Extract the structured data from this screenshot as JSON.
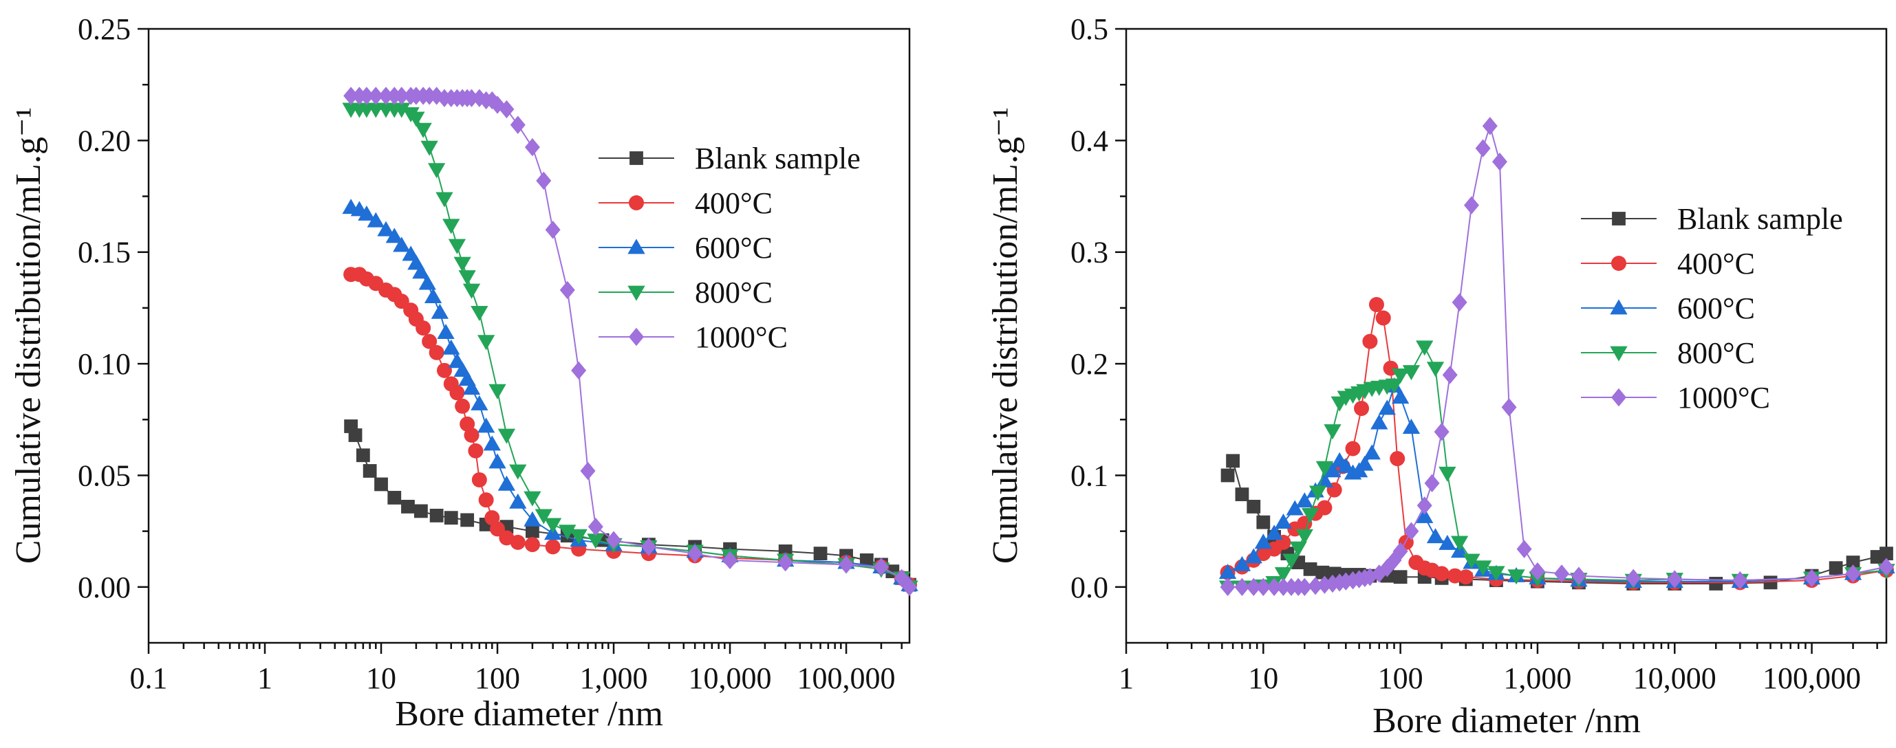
{
  "chart_data": [
    {
      "type": "line",
      "xscale": "log",
      "xlabel": "Bore diameter /nm",
      "ylabel": "Cumulative distribution/mL.g⁻¹",
      "xlim": [
        0.1,
        350000
      ],
      "ylim": [
        -0.025,
        0.25
      ],
      "xticks": [
        0.1,
        1,
        10,
        100,
        1000,
        10000,
        100000
      ],
      "xtick_labels": [
        "0.1",
        "1",
        "10",
        "100",
        "1,000",
        "10,000",
        "100,000"
      ],
      "yticks": [
        0,
        0.05,
        0.1,
        0.15,
        0.2,
        0.25
      ],
      "ytick_labels": [
        "0.00",
        "0.05",
        "0.10",
        "0.15",
        "0.20",
        "0.25"
      ],
      "legend_position": "center-right",
      "series": [
        {
          "name": "Blank sample",
          "color": "#3f3f3f",
          "marker": "square",
          "x": [
            5.5,
            6,
            7,
            8,
            10,
            13,
            17,
            22,
            30,
            40,
            55,
            80,
            120,
            200,
            400,
            800,
            2000,
            5000,
            10000,
            30000,
            60000,
            100000,
            150000,
            200000,
            250000,
            300000,
            350000
          ],
          "y": [
            0.072,
            0.068,
            0.059,
            0.052,
            0.046,
            0.04,
            0.036,
            0.034,
            0.032,
            0.031,
            0.03,
            0.028,
            0.027,
            0.025,
            0.023,
            0.021,
            0.019,
            0.018,
            0.017,
            0.016,
            0.015,
            0.014,
            0.012,
            0.01,
            0.007,
            0.004,
            0.001
          ]
        },
        {
          "name": "400°C",
          "color": "#e8393b",
          "marker": "circle",
          "x": [
            5.5,
            6.5,
            7.5,
            9,
            11,
            13,
            15,
            18,
            20,
            23,
            26,
            30,
            35,
            40,
            45,
            50,
            55,
            60,
            65,
            70,
            80,
            90,
            100,
            120,
            150,
            200,
            300,
            500,
            1000,
            2000,
            5000,
            10000,
            30000,
            100000,
            200000,
            300000,
            350000
          ],
          "y": [
            0.14,
            0.14,
            0.138,
            0.136,
            0.133,
            0.131,
            0.128,
            0.124,
            0.12,
            0.116,
            0.11,
            0.105,
            0.097,
            0.091,
            0.087,
            0.081,
            0.073,
            0.068,
            0.061,
            0.048,
            0.039,
            0.031,
            0.026,
            0.022,
            0.02,
            0.019,
            0.018,
            0.017,
            0.016,
            0.015,
            0.014,
            0.013,
            0.012,
            0.011,
            0.009,
            0.004,
            0.001
          ]
        },
        {
          "name": "600°C",
          "color": "#1f6fd6",
          "marker": "triangle-up",
          "x": [
            5.5,
            6.5,
            7.5,
            9,
            11,
            13,
            15,
            18,
            20,
            22,
            25,
            28,
            32,
            36,
            40,
            45,
            50,
            55,
            60,
            70,
            80,
            90,
            100,
            120,
            150,
            200,
            300,
            500,
            1000,
            2000,
            5000,
            10000,
            30000,
            100000,
            200000,
            300000,
            350000
          ],
          "y": [
            0.17,
            0.169,
            0.167,
            0.164,
            0.16,
            0.157,
            0.153,
            0.149,
            0.145,
            0.141,
            0.136,
            0.13,
            0.123,
            0.114,
            0.107,
            0.101,
            0.097,
            0.093,
            0.089,
            0.082,
            0.072,
            0.064,
            0.056,
            0.046,
            0.038,
            0.03,
            0.024,
            0.021,
            0.019,
            0.018,
            0.016,
            0.014,
            0.012,
            0.011,
            0.009,
            0.004,
            0.001
          ]
        },
        {
          "name": "800°C",
          "color": "#23a557",
          "marker": "triangle-down",
          "x": [
            5.5,
            6.5,
            7.5,
            9,
            11,
            13,
            15,
            18,
            20,
            23,
            26,
            30,
            35,
            40,
            45,
            50,
            55,
            60,
            70,
            80,
            100,
            120,
            150,
            200,
            250,
            300,
            400,
            500,
            700,
            1000,
            2000,
            5000,
            10000,
            30000,
            100000,
            200000,
            300000,
            350000
          ],
          "y": [
            0.214,
            0.214,
            0.214,
            0.214,
            0.214,
            0.214,
            0.214,
            0.212,
            0.21,
            0.205,
            0.197,
            0.187,
            0.174,
            0.162,
            0.153,
            0.145,
            0.139,
            0.133,
            0.123,
            0.11,
            0.088,
            0.068,
            0.052,
            0.04,
            0.032,
            0.028,
            0.025,
            0.023,
            0.021,
            0.019,
            0.018,
            0.016,
            0.014,
            0.012,
            0.01,
            0.008,
            0.004,
            0.0
          ]
        },
        {
          "name": "1000°C",
          "color": "#a070dc",
          "marker": "diamond",
          "x": [
            5.5,
            6.5,
            7.5,
            9,
            11,
            13,
            15,
            18,
            20,
            23,
            26,
            30,
            35,
            40,
            45,
            50,
            55,
            60,
            70,
            80,
            90,
            100,
            120,
            150,
            200,
            250,
            300,
            400,
            500,
            600,
            700,
            1000,
            2000,
            5000,
            10000,
            30000,
            100000,
            200000,
            300000,
            350000
          ],
          "y": [
            0.22,
            0.22,
            0.22,
            0.22,
            0.22,
            0.22,
            0.22,
            0.22,
            0.22,
            0.22,
            0.22,
            0.22,
            0.219,
            0.219,
            0.219,
            0.219,
            0.219,
            0.219,
            0.219,
            0.218,
            0.218,
            0.216,
            0.214,
            0.207,
            0.197,
            0.182,
            0.16,
            0.133,
            0.097,
            0.052,
            0.027,
            0.021,
            0.018,
            0.015,
            0.012,
            0.011,
            0.01,
            0.009,
            0.004,
            0.0
          ]
        }
      ]
    },
    {
      "type": "line",
      "xscale": "log",
      "xlabel": "Bore diameter /nm",
      "ylabel": "Cumulative distribution/mL.g⁻¹",
      "xlim": [
        1,
        350000
      ],
      "ylim": [
        -0.05,
        0.5
      ],
      "xticks": [
        1,
        10,
        100,
        1000,
        10000,
        100000
      ],
      "xtick_labels": [
        "1",
        "10",
        "100",
        "1,000",
        "10,000",
        "100,000"
      ],
      "yticks": [
        0,
        0.1,
        0.2,
        0.3,
        0.4,
        0.5
      ],
      "ytick_labels": [
        "0.0",
        "0.1",
        "0.2",
        "0.3",
        "0.4",
        "0.5"
      ],
      "legend_position": "center-right",
      "series": [
        {
          "name": "Blank sample",
          "color": "#3f3f3f",
          "marker": "square",
          "x": [
            5.5,
            6,
            7,
            8.5,
            10,
            12,
            15,
            18,
            22,
            27,
            33,
            40,
            50,
            60,
            80,
            100,
            150,
            200,
            300,
            500,
            1000,
            2000,
            5000,
            10000,
            20000,
            50000,
            100000,
            150000,
            200000,
            300000,
            350000
          ],
          "y": [
            0.1,
            0.113,
            0.083,
            0.072,
            0.058,
            0.045,
            0.03,
            0.022,
            0.016,
            0.013,
            0.012,
            0.011,
            0.011,
            0.01,
            0.01,
            0.009,
            0.009,
            0.008,
            0.007,
            0.006,
            0.005,
            0.004,
            0.003,
            0.003,
            0.003,
            0.004,
            0.01,
            0.017,
            0.022,
            0.027,
            0.03
          ]
        },
        {
          "name": "400°C",
          "color": "#e8393b",
          "marker": "circle",
          "x": [
            5.5,
            7,
            8.5,
            10,
            12,
            14,
            17,
            20,
            24,
            28,
            33,
            38,
            45,
            52,
            60,
            67,
            75,
            85,
            95,
            110,
            130,
            150,
            170,
            200,
            250,
            300,
            500,
            1000,
            2000,
            5000,
            10000,
            30000,
            100000,
            200000,
            350000
          ],
          "y": [
            0.013,
            0.018,
            0.024,
            0.03,
            0.034,
            0.04,
            0.052,
            0.057,
            0.066,
            0.071,
            0.087,
            0.108,
            0.124,
            0.16,
            0.22,
            0.253,
            0.241,
            0.196,
            0.115,
            0.04,
            0.022,
            0.017,
            0.015,
            0.012,
            0.01,
            0.009,
            0.007,
            0.006,
            0.005,
            0.004,
            0.004,
            0.004,
            0.006,
            0.01,
            0.015
          ]
        },
        {
          "name": "600°C",
          "color": "#1f6fd6",
          "marker": "triangle-up",
          "x": [
            5.5,
            7,
            8.5,
            10,
            12,
            14,
            17,
            20,
            24,
            28,
            32,
            36,
            40,
            45,
            50,
            55,
            62,
            70,
            80,
            90,
            100,
            120,
            150,
            180,
            220,
            270,
            330,
            400,
            500,
            700,
            1000,
            2000,
            5000,
            10000,
            30000,
            100000,
            200000,
            350000
          ],
          "y": [
            0.013,
            0.02,
            0.027,
            0.04,
            0.048,
            0.058,
            0.07,
            0.077,
            0.086,
            0.095,
            0.104,
            0.113,
            0.108,
            0.102,
            0.104,
            0.11,
            0.12,
            0.147,
            0.16,
            0.18,
            0.17,
            0.143,
            0.063,
            0.045,
            0.039,
            0.032,
            0.022,
            0.015,
            0.012,
            0.01,
            0.008,
            0.006,
            0.005,
            0.005,
            0.005,
            0.008,
            0.012,
            0.018
          ]
        },
        {
          "name": "800°C",
          "color": "#23a557",
          "marker": "triangle-down",
          "x": [
            5.5,
            7,
            8.5,
            10,
            12,
            14,
            16,
            18,
            20,
            22,
            25,
            28,
            32,
            36,
            40,
            45,
            50,
            55,
            62,
            70,
            80,
            90,
            100,
            120,
            150,
            180,
            220,
            270,
            330,
            400,
            500,
            700,
            1000,
            2000,
            5000,
            10000,
            30000,
            100000,
            200000,
            350000
          ],
          "y": [
            0.0,
            0.0,
            0.0,
            0.001,
            0.004,
            0.012,
            0.024,
            0.035,
            0.046,
            0.065,
            0.085,
            0.107,
            0.14,
            0.165,
            0.17,
            0.172,
            0.174,
            0.176,
            0.178,
            0.179,
            0.18,
            0.181,
            0.19,
            0.193,
            0.215,
            0.196,
            0.102,
            0.04,
            0.024,
            0.018,
            0.013,
            0.01,
            0.008,
            0.007,
            0.006,
            0.007,
            0.006,
            0.008,
            0.012,
            0.015
          ]
        },
        {
          "name": "1000°C",
          "color": "#a070dc",
          "marker": "diamond",
          "x": [
            5.5,
            7,
            8.5,
            10,
            12,
            14,
            16,
            18,
            20,
            24,
            28,
            32,
            36,
            40,
            45,
            50,
            55,
            60,
            70,
            80,
            90,
            100,
            120,
            150,
            170,
            200,
            230,
            270,
            330,
            400,
            450,
            530,
            620,
            800,
            1000,
            1500,
            2000,
            5000,
            10000,
            30000,
            100000,
            200000,
            350000
          ],
          "y": [
            0.0,
            0.0,
            0.0,
            0.0,
            0.0,
            0.0,
            0.0,
            0.0,
            0.0,
            0.001,
            0.002,
            0.003,
            0.004,
            0.005,
            0.006,
            0.007,
            0.008,
            0.009,
            0.012,
            0.017,
            0.024,
            0.032,
            0.05,
            0.073,
            0.093,
            0.139,
            0.19,
            0.255,
            0.342,
            0.393,
            0.413,
            0.381,
            0.161,
            0.034,
            0.014,
            0.012,
            0.01,
            0.008,
            0.007,
            0.006,
            0.008,
            0.012,
            0.018
          ]
        }
      ]
    }
  ]
}
